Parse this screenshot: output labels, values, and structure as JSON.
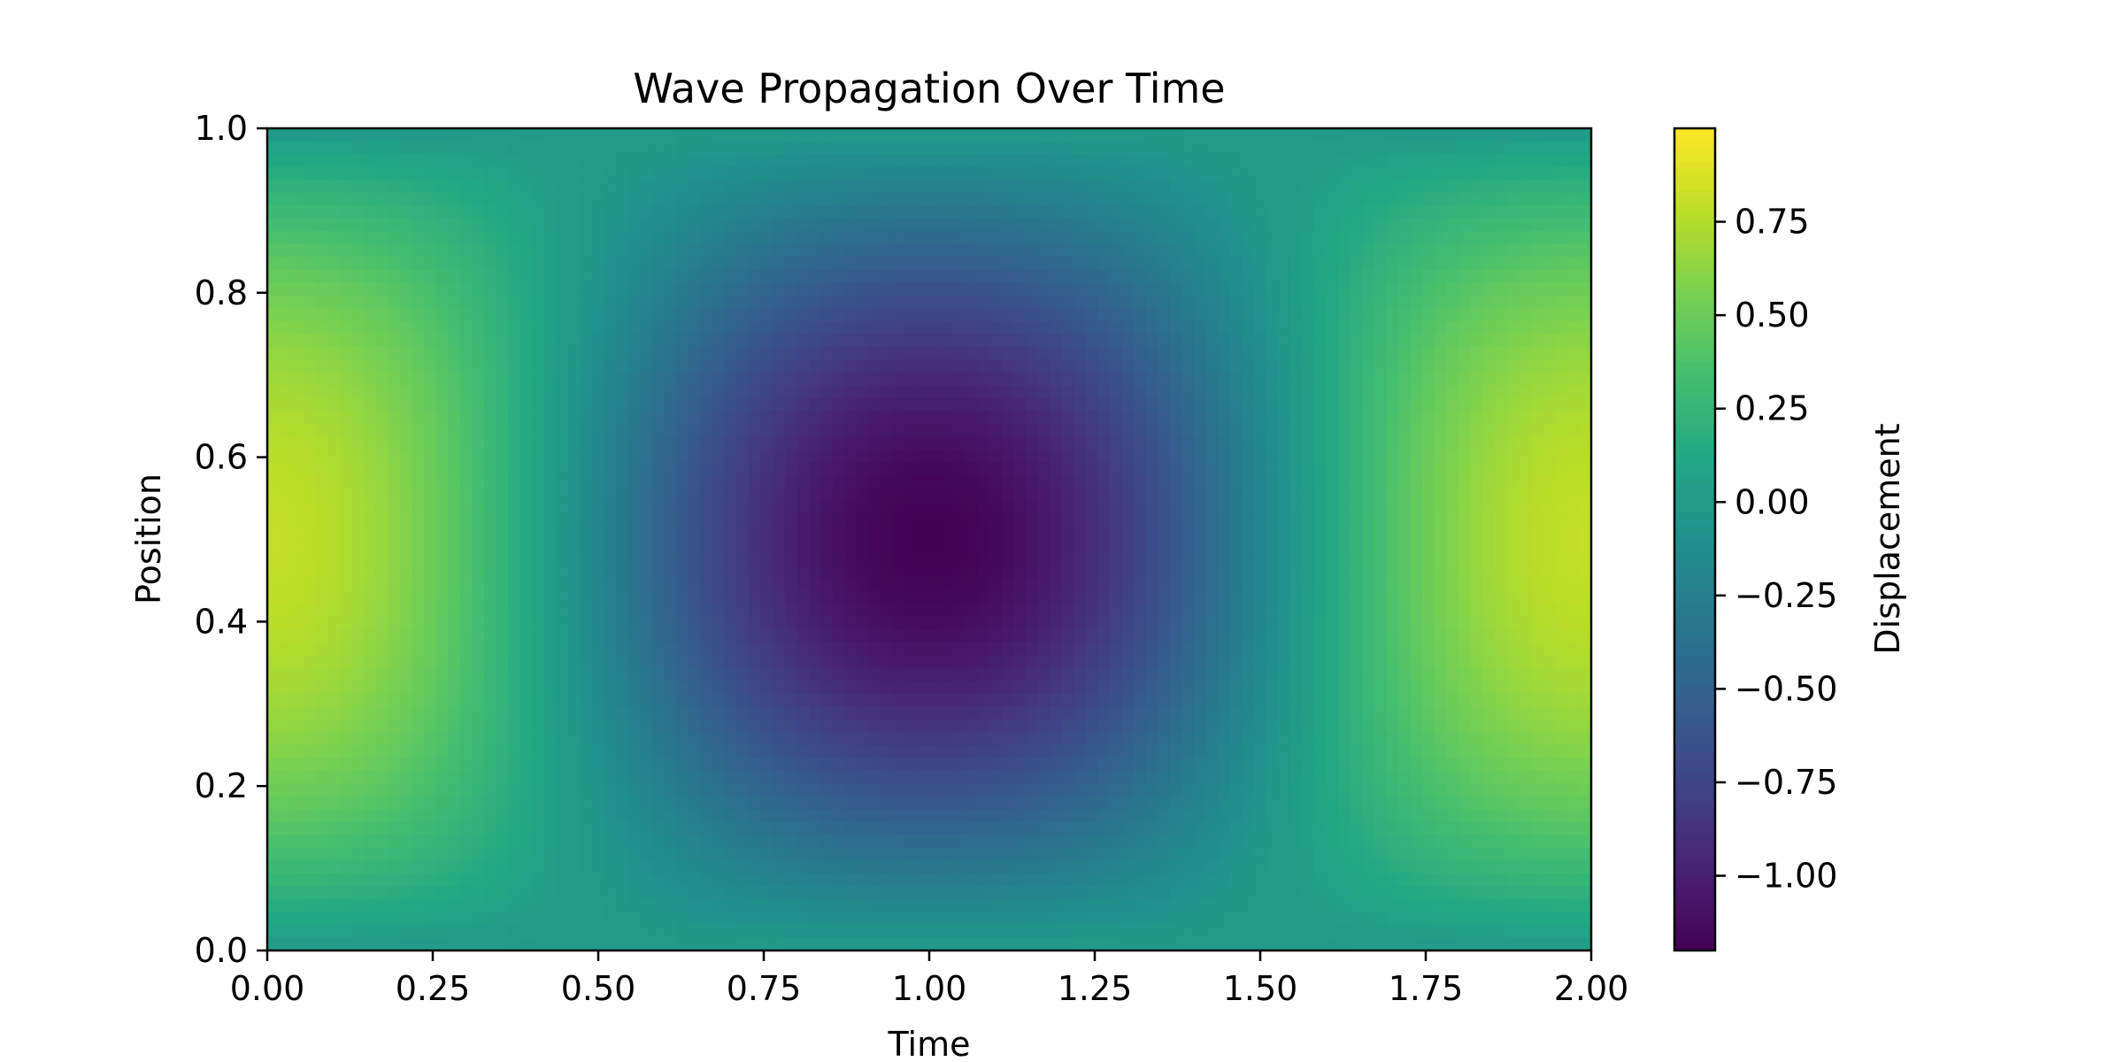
{
  "chart_data": {
    "type": "heatmap",
    "title": "Wave Propagation Over Time",
    "xlabel": "Time",
    "ylabel": "Position",
    "xlim": [
      0.0,
      2.0
    ],
    "ylim": [
      0.0,
      1.0
    ],
    "x_ticks": [
      "0.00",
      "0.25",
      "0.50",
      "0.75",
      "1.00",
      "1.25",
      "1.50",
      "1.75",
      "2.00"
    ],
    "y_ticks": [
      "0.0",
      "0.2",
      "0.4",
      "0.6",
      "0.8",
      "1.0"
    ],
    "colormap": "viridis",
    "field": "displacement = sin(pi * position) * cos(pi * time) - 0.2 * sin(pi * position)^2",
    "grid": false,
    "colorbar": {
      "label": "Displacement",
      "range": [
        -1.2,
        1.0
      ],
      "ticks": [
        "−1.00",
        "−0.75",
        "−0.50",
        "−0.25",
        "0.00",
        "0.25",
        "0.50",
        "0.75"
      ],
      "tick_values": [
        -1.0,
        -0.75,
        -0.5,
        -0.25,
        0.0,
        0.25,
        0.5,
        0.75
      ],
      "placement": "right"
    },
    "samples": [
      {
        "time": 0.0,
        "position": 0.5,
        "displacement": 0.8
      },
      {
        "time": 1.0,
        "position": 0.5,
        "displacement": -1.2
      },
      {
        "time": 2.0,
        "position": 0.5,
        "displacement": 0.8
      },
      {
        "time": 0.0,
        "position": 0.0,
        "displacement": 0.0
      },
      {
        "time": 1.0,
        "position": 1.0,
        "displacement": 0.0
      }
    ]
  }
}
